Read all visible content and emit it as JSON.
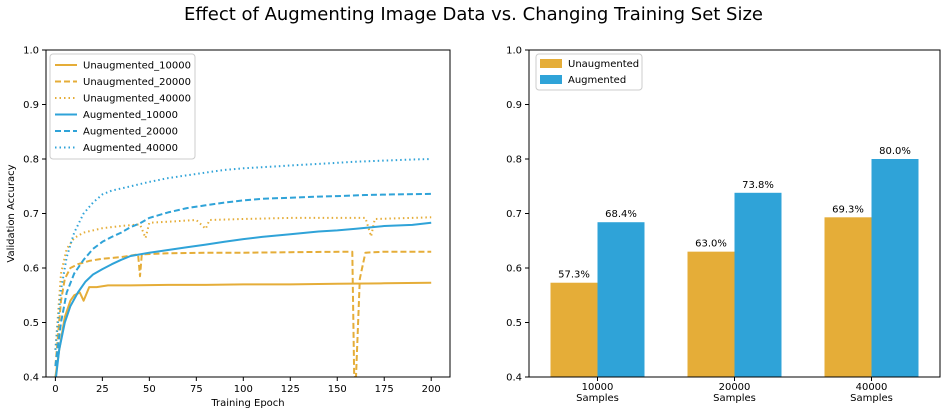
{
  "figure": {
    "title": "Effect of Augmenting Image Data vs. Changing Training Set Size"
  },
  "colors": {
    "unaugmented": "#E5AD38",
    "augmented": "#2FA3D8"
  },
  "chart_data": [
    {
      "type": "line",
      "xlabel": "Training Epoch",
      "ylabel": "Validation Accuracy",
      "xlim": [
        -5,
        210
      ],
      "ylim": [
        0.4,
        1.0
      ],
      "xticks": [
        0,
        25,
        50,
        75,
        100,
        125,
        150,
        175,
        200
      ],
      "yticks": [
        0.4,
        0.5,
        0.6,
        0.7,
        0.8,
        0.9,
        1.0
      ],
      "legend": "top-left",
      "grid": false,
      "series": [
        {
          "name": "Unaugmented_10000",
          "style": "solid",
          "color_key": "unaugmented",
          "points": [
            [
              0,
              0.4
            ],
            [
              2,
              0.45
            ],
            [
              5,
              0.51
            ],
            [
              8,
              0.54
            ],
            [
              10,
              0.55
            ],
            [
              13,
              0.555
            ],
            [
              15,
              0.54
            ],
            [
              18,
              0.565
            ],
            [
              22,
              0.565
            ],
            [
              28,
              0.568
            ],
            [
              40,
              0.568
            ],
            [
              60,
              0.569
            ],
            [
              80,
              0.569
            ],
            [
              100,
              0.57
            ],
            [
              125,
              0.57
            ],
            [
              150,
              0.571
            ],
            [
              175,
              0.572
            ],
            [
              200,
              0.573
            ]
          ]
        },
        {
          "name": "Unaugmented_20000",
          "style": "dashed",
          "color_key": "unaugmented",
          "points": [
            [
              0,
              0.42
            ],
            [
              3,
              0.54
            ],
            [
              5,
              0.58
            ],
            [
              8,
              0.6
            ],
            [
              12,
              0.607
            ],
            [
              18,
              0.613
            ],
            [
              25,
              0.617
            ],
            [
              35,
              0.62
            ],
            [
              44,
              0.625
            ],
            [
              45,
              0.585
            ],
            [
              46,
              0.625
            ],
            [
              60,
              0.627
            ],
            [
              80,
              0.628
            ],
            [
              100,
              0.628
            ],
            [
              125,
              0.629
            ],
            [
              155,
              0.63
            ],
            [
              158,
              0.63
            ],
            [
              159,
              0.4
            ],
            [
              160,
              0.4
            ],
            [
              162,
              0.58
            ],
            [
              165,
              0.628
            ],
            [
              175,
              0.63
            ],
            [
              200,
              0.63
            ]
          ]
        },
        {
          "name": "Unaugmented_40000",
          "style": "dotted",
          "color_key": "unaugmented",
          "points": [
            [
              0,
              0.45
            ],
            [
              3,
              0.59
            ],
            [
              6,
              0.635
            ],
            [
              10,
              0.655
            ],
            [
              15,
              0.665
            ],
            [
              25,
              0.673
            ],
            [
              35,
              0.677
            ],
            [
              45,
              0.68
            ],
            [
              48,
              0.655
            ],
            [
              50,
              0.683
            ],
            [
              60,
              0.685
            ],
            [
              75,
              0.688
            ],
            [
              80,
              0.672
            ],
            [
              82,
              0.688
            ],
            [
              100,
              0.69
            ],
            [
              125,
              0.692
            ],
            [
              150,
              0.692
            ],
            [
              165,
              0.692
            ],
            [
              168,
              0.658
            ],
            [
              170,
              0.69
            ],
            [
              200,
              0.693
            ]
          ]
        },
        {
          "name": "Augmented_10000",
          "style": "solid",
          "color_key": "augmented",
          "points": [
            [
              0,
              0.39
            ],
            [
              2,
              0.45
            ],
            [
              5,
              0.5
            ],
            [
              8,
              0.53
            ],
            [
              12,
              0.555
            ],
            [
              16,
              0.575
            ],
            [
              20,
              0.588
            ],
            [
              25,
              0.598
            ],
            [
              30,
              0.607
            ],
            [
              35,
              0.615
            ],
            [
              40,
              0.622
            ],
            [
              50,
              0.628
            ],
            [
              60,
              0.633
            ],
            [
              70,
              0.638
            ],
            [
              80,
              0.643
            ],
            [
              90,
              0.648
            ],
            [
              100,
              0.653
            ],
            [
              110,
              0.657
            ],
            [
              125,
              0.662
            ],
            [
              140,
              0.667
            ],
            [
              150,
              0.669
            ],
            [
              160,
              0.672
            ],
            [
              175,
              0.677
            ],
            [
              190,
              0.679
            ],
            [
              200,
              0.683
            ]
          ]
        },
        {
          "name": "Augmented_20000",
          "style": "dashed",
          "color_key": "augmented",
          "points": [
            [
              0,
              0.42
            ],
            [
              3,
              0.5
            ],
            [
              6,
              0.555
            ],
            [
              10,
              0.59
            ],
            [
              15,
              0.615
            ],
            [
              20,
              0.635
            ],
            [
              25,
              0.648
            ],
            [
              30,
              0.657
            ],
            [
              35,
              0.665
            ],
            [
              40,
              0.675
            ],
            [
              45,
              0.682
            ],
            [
              50,
              0.692
            ],
            [
              60,
              0.702
            ],
            [
              70,
              0.71
            ],
            [
              80,
              0.715
            ],
            [
              90,
              0.72
            ],
            [
              100,
              0.724
            ],
            [
              110,
              0.727
            ],
            [
              125,
              0.729
            ],
            [
              140,
              0.731
            ],
            [
              150,
              0.732
            ],
            [
              165,
              0.734
            ],
            [
              180,
              0.735
            ],
            [
              200,
              0.736
            ]
          ]
        },
        {
          "name": "Augmented_40000",
          "style": "dotted",
          "color_key": "augmented",
          "points": [
            [
              0,
              0.45
            ],
            [
              3,
              0.56
            ],
            [
              6,
              0.62
            ],
            [
              10,
              0.665
            ],
            [
              15,
              0.7
            ],
            [
              20,
              0.72
            ],
            [
              25,
              0.735
            ],
            [
              30,
              0.742
            ],
            [
              40,
              0.75
            ],
            [
              50,
              0.758
            ],
            [
              60,
              0.765
            ],
            [
              70,
              0.77
            ],
            [
              80,
              0.775
            ],
            [
              90,
              0.78
            ],
            [
              100,
              0.783
            ],
            [
              110,
              0.785
            ],
            [
              125,
              0.788
            ],
            [
              140,
              0.791
            ],
            [
              150,
              0.793
            ],
            [
              160,
              0.795
            ],
            [
              175,
              0.797
            ],
            [
              190,
              0.799
            ],
            [
              200,
              0.8
            ]
          ]
        }
      ]
    },
    {
      "type": "bar",
      "categories": [
        "10000\nSamples",
        "20000\nSamples",
        "40000\nSamples"
      ],
      "ylim": [
        0.4,
        1.0
      ],
      "yticks": [
        0.4,
        0.5,
        0.6,
        0.7,
        0.8,
        0.9,
        1.0
      ],
      "legend": "top-left",
      "grid": false,
      "series": [
        {
          "name": "Unaugmented",
          "color_key": "unaugmented",
          "values": [
            0.573,
            0.63,
            0.693
          ],
          "labels": [
            "57.3%",
            "63.0%",
            "69.3%"
          ]
        },
        {
          "name": "Augmented",
          "color_key": "augmented",
          "values": [
            0.684,
            0.738,
            0.8
          ],
          "labels": [
            "68.4%",
            "73.8%",
            "80.0%"
          ]
        }
      ]
    }
  ]
}
